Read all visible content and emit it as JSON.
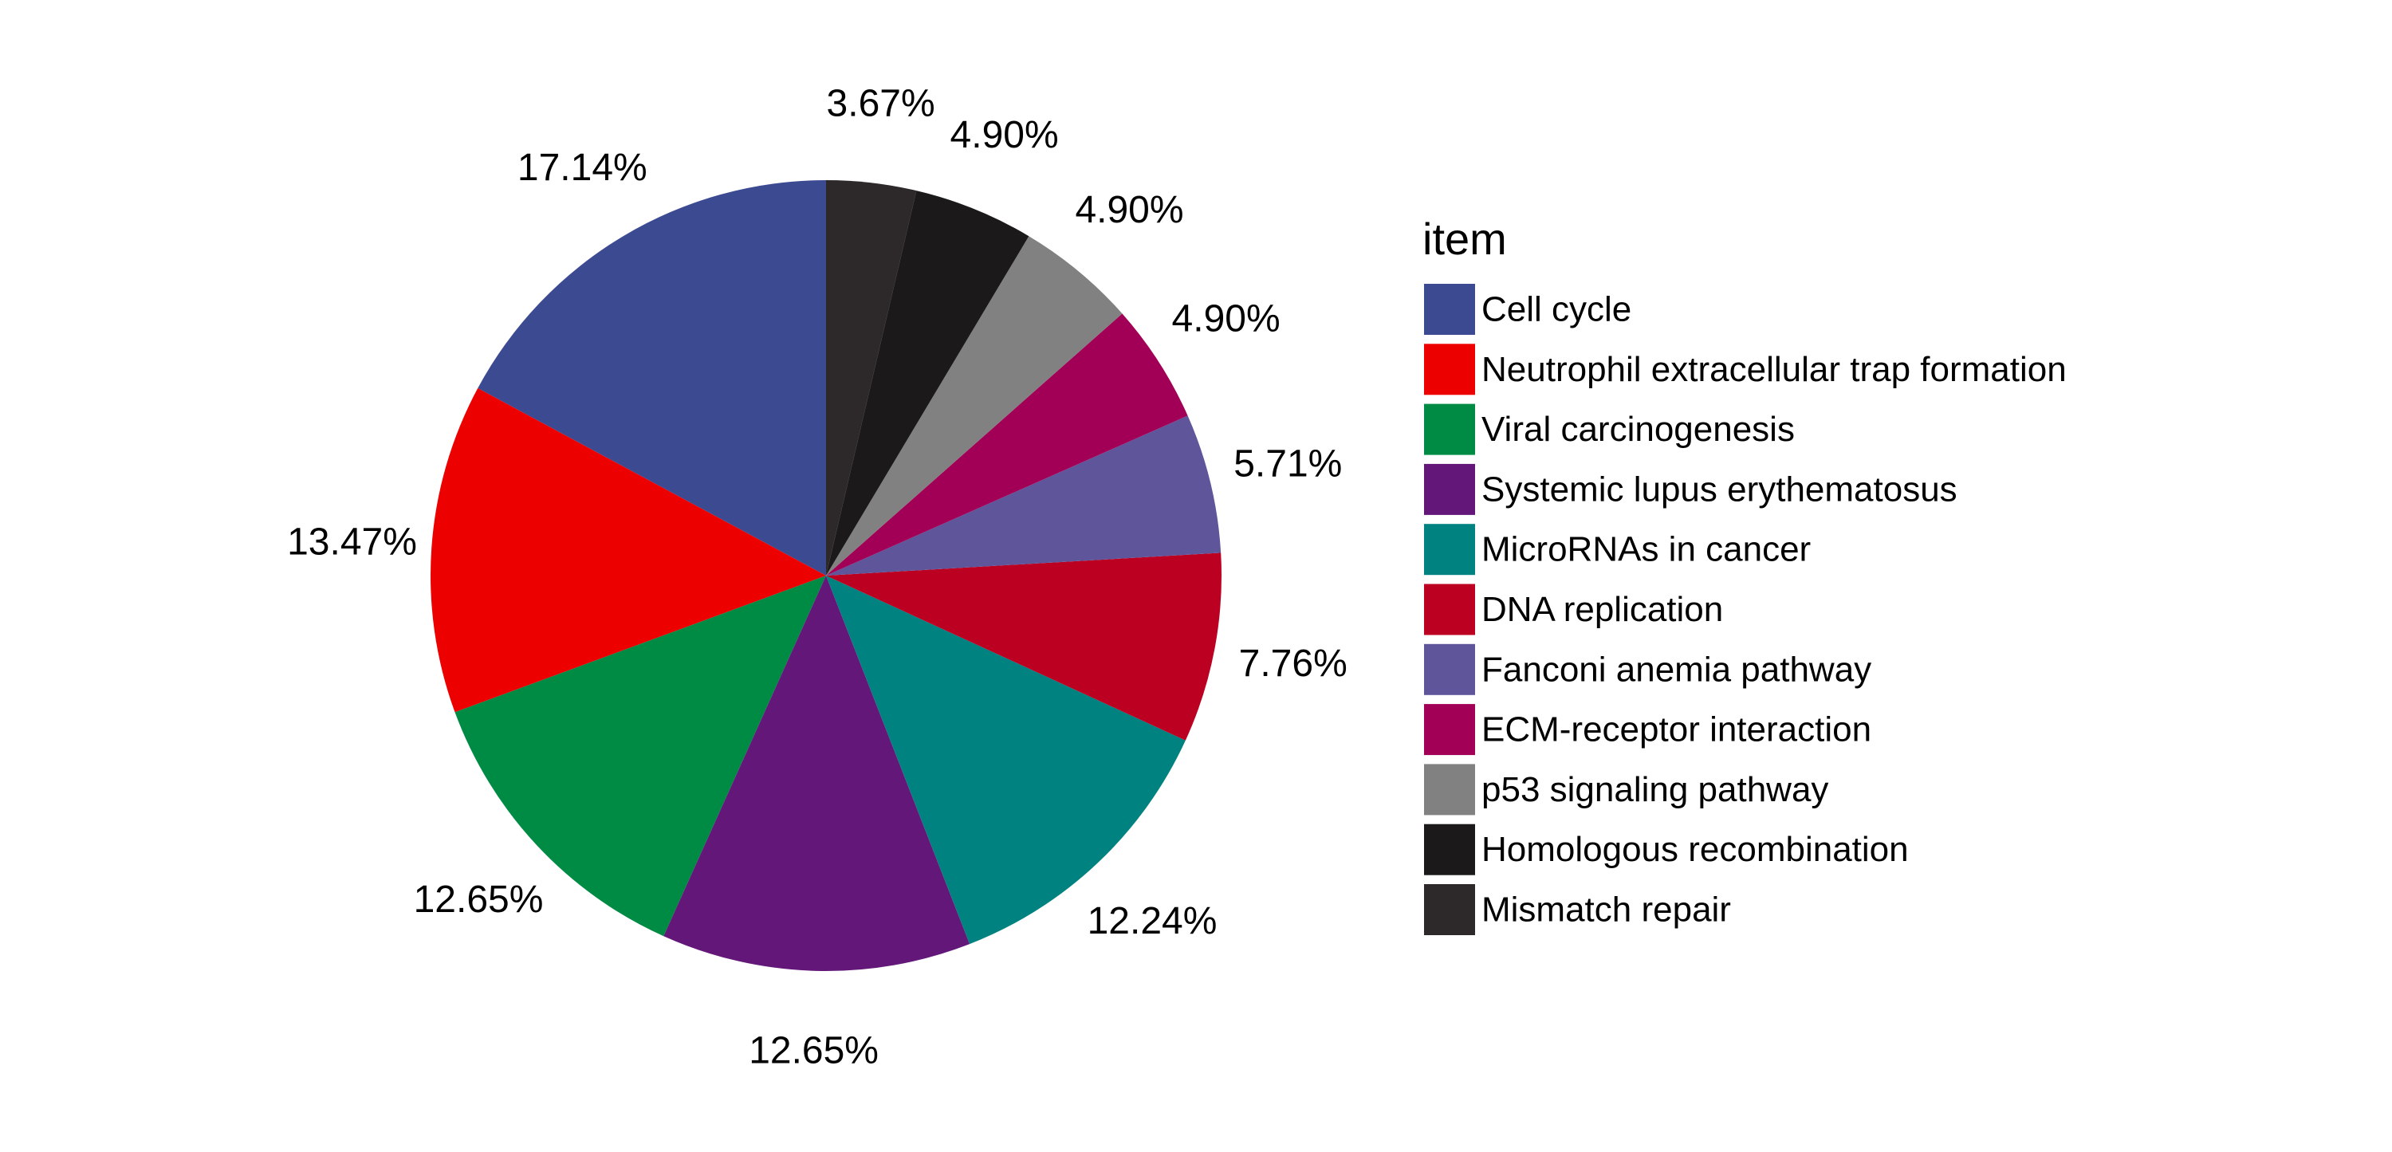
{
  "chart_data": {
    "type": "pie",
    "legend_title": "item",
    "legend_position": "right",
    "start": "top",
    "direction": "counterclockwise",
    "slices": [
      {
        "label": "Cell cycle",
        "value": 17.14,
        "value_label": "17.14%",
        "color": "#3C4A92"
      },
      {
        "label": "Neutrophil extracellular trap formation",
        "value": 13.47,
        "value_label": "13.47%",
        "color": "#EC0000"
      },
      {
        "label": "Viral carcinogenesis",
        "value": 12.65,
        "value_label": "12.65%",
        "color": "#008B45"
      },
      {
        "label": "Systemic lupus erythematosus",
        "value": 12.65,
        "value_label": "12.65%",
        "color": "#631879"
      },
      {
        "label": "MicroRNAs in cancer",
        "value": 12.24,
        "value_label": "12.24%",
        "color": "#008280"
      },
      {
        "label": "DNA replication",
        "value": 7.76,
        "value_label": "7.76%",
        "color": "#BB0021"
      },
      {
        "label": "Fanconi anemia pathway",
        "value": 5.71,
        "value_label": "5.71%",
        "color": "#5F559B"
      },
      {
        "label": "ECM-receptor interaction",
        "value": 4.9,
        "value_label": "4.90%",
        "color": "#A20056"
      },
      {
        "label": "p53 signaling pathway",
        "value": 4.9,
        "value_label": "4.90%",
        "color": "#808180"
      },
      {
        "label": "Homologous recombination",
        "value": 4.9,
        "value_label": "4.90%",
        "color": "#1B1919"
      },
      {
        "label": "Mismatch repair",
        "value": 3.67,
        "value_label": "3.67%",
        "color": "#2D2829"
      }
    ]
  }
}
